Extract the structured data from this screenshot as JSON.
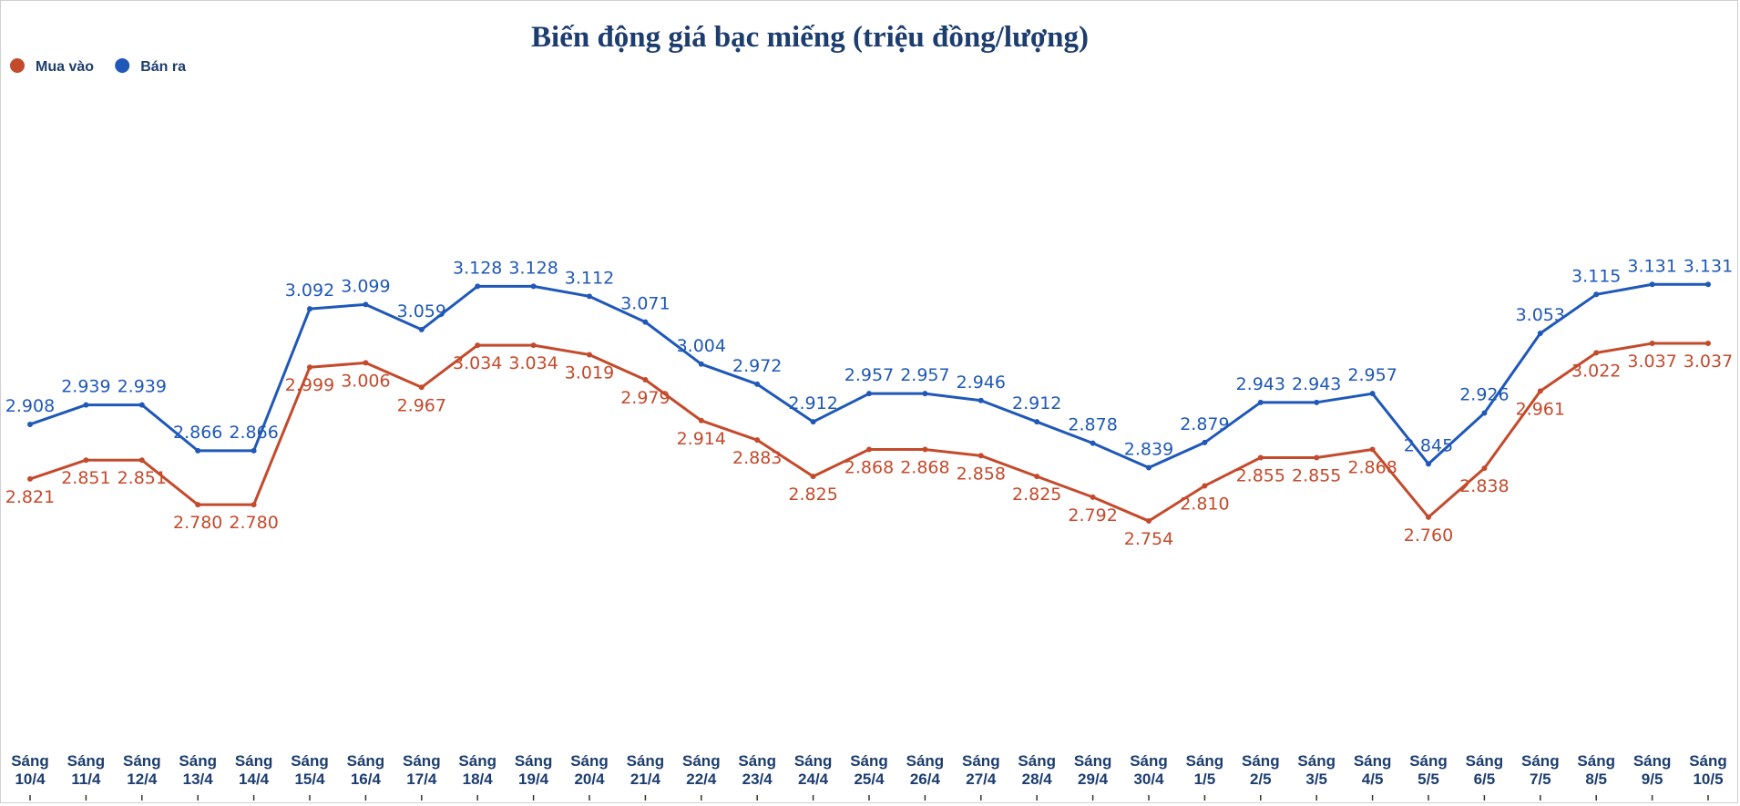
{
  "chart_data": {
    "type": "line",
    "title": "Biến động giá bạc miếng (triệu đồng/lượng)",
    "xlabel": "",
    "ylabel": "",
    "ylim": [
      2.4,
      3.5
    ],
    "grid": false,
    "legend_position": "top-left",
    "categories": [
      [
        "Sáng",
        "10/4"
      ],
      [
        "Sáng",
        "11/4"
      ],
      [
        "Sáng",
        "12/4"
      ],
      [
        "Sáng",
        "13/4"
      ],
      [
        "Sáng",
        "14/4"
      ],
      [
        "Sáng",
        "15/4"
      ],
      [
        "Sáng",
        "16/4"
      ],
      [
        "Sáng",
        "17/4"
      ],
      [
        "Sáng",
        "18/4"
      ],
      [
        "Sáng",
        "19/4"
      ],
      [
        "Sáng",
        "20/4"
      ],
      [
        "Sáng",
        "21/4"
      ],
      [
        "Sáng",
        "22/4"
      ],
      [
        "Sáng",
        "23/4"
      ],
      [
        "Sáng",
        "24/4"
      ],
      [
        "Sáng",
        "25/4"
      ],
      [
        "Sáng",
        "26/4"
      ],
      [
        "Sáng",
        "27/4"
      ],
      [
        "Sáng",
        "28/4"
      ],
      [
        "Sáng",
        "29/4"
      ],
      [
        "Sáng",
        "30/4"
      ],
      [
        "Sáng",
        "1/5"
      ],
      [
        "Sáng",
        "2/5"
      ],
      [
        "Sáng",
        "3/5"
      ],
      [
        "Sáng",
        "4/5"
      ],
      [
        "Sáng",
        "5/5"
      ],
      [
        "Sáng",
        "6/5"
      ],
      [
        "Sáng",
        "7/5"
      ],
      [
        "Sáng",
        "8/5"
      ],
      [
        "Sáng",
        "9/5"
      ],
      [
        "Sáng",
        "10/5"
      ]
    ],
    "series": [
      {
        "name": "Mua vào",
        "color": "#c44a2c",
        "label_position": "below",
        "values": [
          2.821,
          2.851,
          2.851,
          2.78,
          2.78,
          2.999,
          3.006,
          2.967,
          3.034,
          3.034,
          3.019,
          2.979,
          2.914,
          2.883,
          2.825,
          2.868,
          2.868,
          2.858,
          2.825,
          2.792,
          2.754,
          2.81,
          2.855,
          2.855,
          2.868,
          2.76,
          2.838,
          2.961,
          3.022,
          3.037,
          3.037
        ],
        "labels": [
          "2.821",
          "2.851",
          "2.851",
          "2.780",
          "2.780",
          "2.999",
          "3.006",
          "2.967",
          "3.034",
          "3.034",
          "3.019",
          "2.979",
          "2.914",
          "2.883",
          "2.825",
          "2.868",
          "2.868",
          "2.858",
          "2.825",
          "2.792",
          "2.754",
          "2.810",
          "2.855",
          "2.855",
          "2.868",
          "2.760",
          "2.838",
          "2.961",
          "3.022",
          "3.037",
          "3.037"
        ]
      },
      {
        "name": "Bán ra",
        "color": "#1f58b8",
        "label_position": "above",
        "values": [
          2.908,
          2.939,
          2.939,
          2.866,
          2.866,
          3.092,
          3.099,
          3.059,
          3.128,
          3.128,
          3.112,
          3.071,
          3.004,
          2.972,
          2.912,
          2.957,
          2.957,
          2.946,
          2.912,
          2.878,
          2.839,
          2.879,
          2.943,
          2.943,
          2.957,
          2.845,
          2.926,
          3.053,
          3.115,
          3.131,
          3.131
        ],
        "labels": [
          "2.908",
          "2.939",
          "2.939",
          "2.866",
          "2.866",
          "3.092",
          "3.099",
          "3.059",
          "3.128",
          "3.128",
          "3.112",
          "3.071",
          "3.004",
          "2.972",
          "2.912",
          "2.957",
          "2.957",
          "2.946",
          "2.912",
          "2.878",
          "2.839",
          "2.879",
          "2.943",
          "2.943",
          "2.957",
          "2.845",
          "2.926",
          "3.053",
          "3.115",
          "3.131",
          "3.131"
        ]
      }
    ]
  }
}
